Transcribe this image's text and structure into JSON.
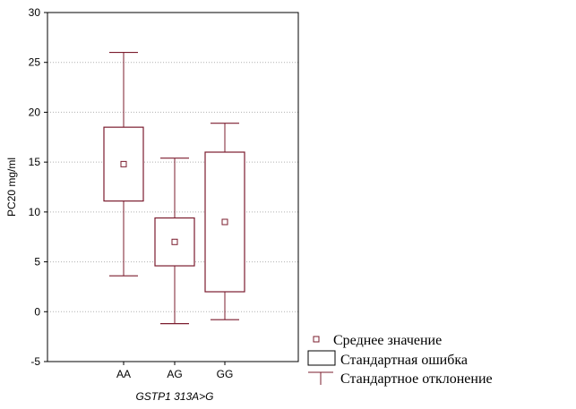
{
  "chart_data": {
    "type": "box",
    "title": "",
    "xlabel": "GSTP1 313A>G",
    "ylabel": "PC20 mg/ml",
    "ylim": [
      -5,
      30
    ],
    "yticks": [
      "30",
      "25",
      "20",
      "15",
      "10",
      "5",
      "0",
      "-5"
    ],
    "grid": true,
    "categories": [
      "AA",
      "AG",
      "GG"
    ],
    "groups": [
      {
        "label": "AA",
        "mean": 14.8,
        "se_low": 11.1,
        "se_high": 18.5,
        "sd_low": 3.6,
        "sd_high": 26.0
      },
      {
        "label": "AG",
        "mean": 7.0,
        "se_low": 4.6,
        "se_high": 9.4,
        "sd_low": -1.2,
        "sd_high": 15.4
      },
      {
        "label": "GG",
        "mean": 9.0,
        "se_low": 2.0,
        "se_high": 16.0,
        "sd_low": -0.8,
        "sd_high": 18.9
      }
    ],
    "legend": {
      "position": "bottom-right",
      "mean_label": "Среднее значение",
      "se_label": "Стандартная ошибка",
      "sd_label": "Стандартное отклонение"
    },
    "colors": {
      "box": "#7b1c2e",
      "grid": "#b0b0b0",
      "axis": "#000000"
    }
  }
}
